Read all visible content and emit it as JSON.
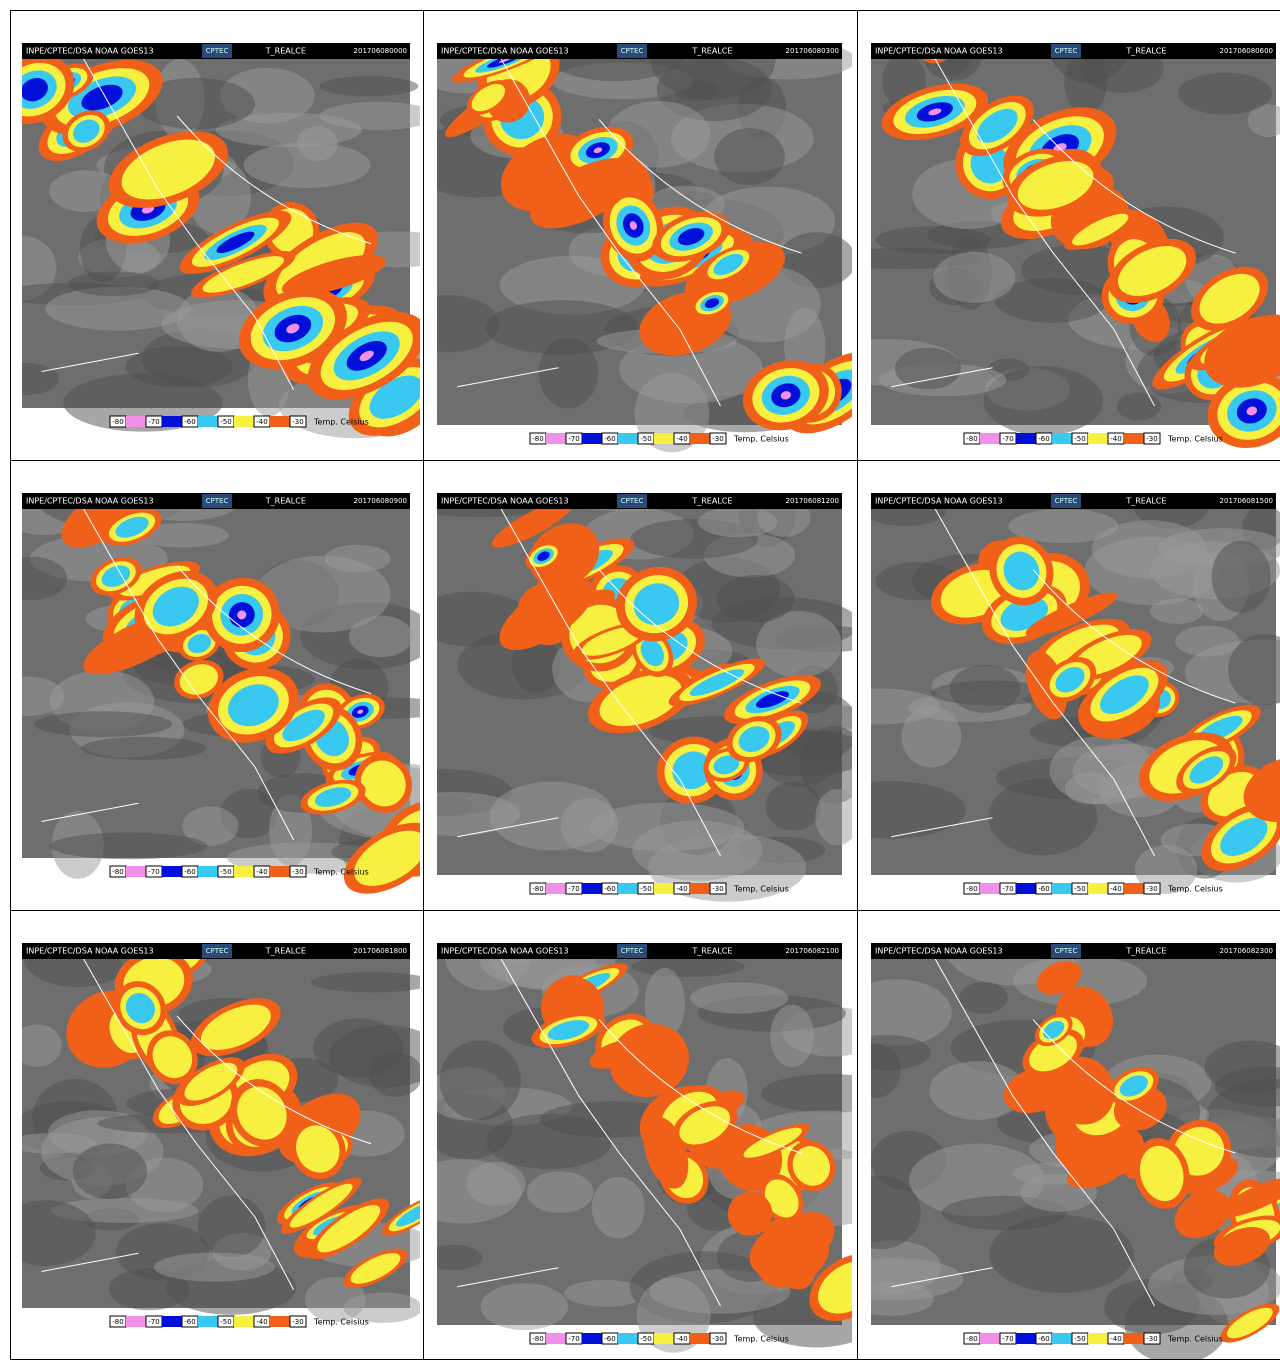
{
  "header": {
    "source": "INPE/CPTEC/DSA NOAA GOES13",
    "logo": "CPTEC",
    "product": "T_REALCE"
  },
  "legend": {
    "labels": [
      "-80",
      "-70",
      "-60",
      "-50",
      "-40",
      "-30"
    ],
    "unit": "Temp. Celsius"
  },
  "panels": [
    {
      "timestamp": "201706080000"
    },
    {
      "timestamp": "201706080300"
    },
    {
      "timestamp": "201706080600"
    },
    {
      "timestamp": "201706080900"
    },
    {
      "timestamp": "201706081200"
    },
    {
      "timestamp": "201706081500"
    },
    {
      "timestamp": "201706081800"
    },
    {
      "timestamp": "201706082100"
    },
    {
      "timestamp": "201706082300"
    }
  ]
}
